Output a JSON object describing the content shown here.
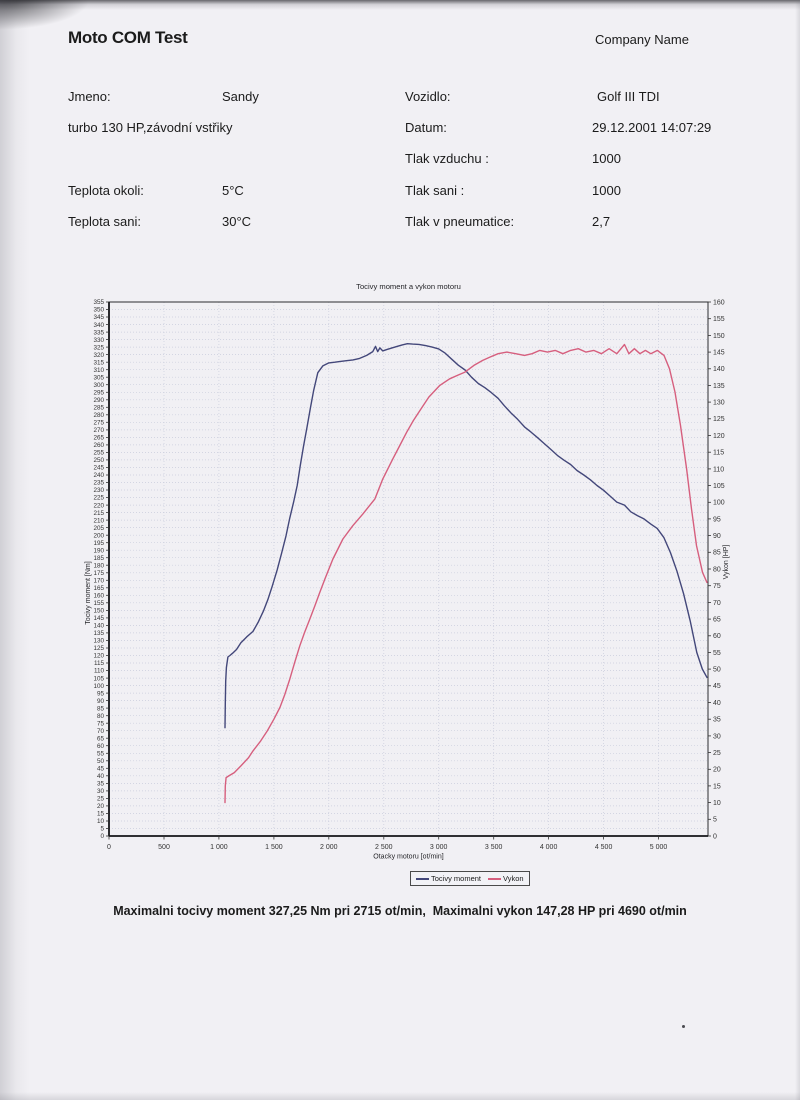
{
  "header": {
    "app_title": "Moto COM Test",
    "company": "Company Name"
  },
  "info": {
    "left": [
      {
        "label": "Jmeno:",
        "value": "Sandy"
      },
      {
        "label": "turbo 130 HP,závodní vstřiky"
      },
      {
        "label": "Teplota okoli:",
        "value": "5°C"
      },
      {
        "label": "Teplota sani:",
        "value": "30°C"
      }
    ],
    "right": [
      {
        "label": "Vozidlo:",
        "value": "Golf III TDI"
      },
      {
        "label": "Datum:",
        "value": "29.12.2001 14:07:29"
      },
      {
        "label": "Tlak vzduchu :",
        "value": "1000"
      },
      {
        "label": "Tlak sani :",
        "value": "1000"
      },
      {
        "label": "Tlak v pneumatice:",
        "value": "2,7"
      }
    ]
  },
  "summary": "Maximalni tocivy moment 327,25 Nm pri 2715 ot/min,  Maximalni vykon 147,28 HP pri 4690 ot/min",
  "chart_data": {
    "type": "line",
    "title": "Tocivy moment a vykon motoru",
    "xlabel": "Otacky motoru [ot/min]",
    "ylabel_left": "Tocivy moment [Nm]",
    "ylabel_right": "Vykon [HP]",
    "xlim": [
      0,
      5450
    ],
    "x_tick_step": 500,
    "x_tick_max": 5000,
    "ylim_left": [
      0,
      355
    ],
    "y_tick_step_left": 5,
    "ylim_right": [
      0,
      160
    ],
    "y_tick_step_right": 5,
    "grid": true,
    "legend_position": "bottom",
    "max_torque_nm": 327.25,
    "max_torque_rpm": 2715,
    "max_power_hp": 147.28,
    "max_power_rpm": 4690,
    "series": [
      {
        "name": "Tocivy moment",
        "axis": "left",
        "color": "#43477a",
        "points": [
          [
            1055,
            72
          ],
          [
            1058,
            88
          ],
          [
            1062,
            103
          ],
          [
            1068,
            112
          ],
          [
            1082,
            119
          ],
          [
            1100,
            120
          ],
          [
            1125,
            121.5
          ],
          [
            1160,
            124
          ],
          [
            1200,
            128.5
          ],
          [
            1255,
            132.5
          ],
          [
            1310,
            136
          ],
          [
            1360,
            142.5
          ],
          [
            1405,
            149.5
          ],
          [
            1445,
            157
          ],
          [
            1485,
            166
          ],
          [
            1530,
            177
          ],
          [
            1570,
            188
          ],
          [
            1610,
            199.5
          ],
          [
            1645,
            211.5
          ],
          [
            1680,
            222
          ],
          [
            1712,
            233
          ],
          [
            1740,
            246
          ],
          [
            1770,
            259
          ],
          [
            1800,
            271
          ],
          [
            1832,
            284.5
          ],
          [
            1862,
            296
          ],
          [
            1900,
            308
          ],
          [
            1945,
            312.5
          ],
          [
            2000,
            314.5
          ],
          [
            2055,
            315
          ],
          [
            2105,
            315.5
          ],
          [
            2160,
            316
          ],
          [
            2220,
            316.5
          ],
          [
            2280,
            317.5
          ],
          [
            2345,
            319.5
          ],
          [
            2400,
            322
          ],
          [
            2425,
            325.5
          ],
          [
            2445,
            322
          ],
          [
            2465,
            324.5
          ],
          [
            2490,
            322.5
          ],
          [
            2530,
            323.5
          ],
          [
            2575,
            324.5
          ],
          [
            2620,
            325.5
          ],
          [
            2668,
            326.5
          ],
          [
            2715,
            327.25
          ],
          [
            2762,
            327
          ],
          [
            2820,
            326.8
          ],
          [
            2880,
            326
          ],
          [
            2940,
            325
          ],
          [
            3000,
            323.8
          ],
          [
            3058,
            321
          ],
          [
            3118,
            317
          ],
          [
            3178,
            313
          ],
          [
            3240,
            309.8
          ],
          [
            3298,
            305
          ],
          [
            3360,
            300.8
          ],
          [
            3420,
            298
          ],
          [
            3478,
            294.8
          ],
          [
            3540,
            291
          ],
          [
            3598,
            286
          ],
          [
            3660,
            281
          ],
          [
            3718,
            277
          ],
          [
            3780,
            272
          ],
          [
            3840,
            268.5
          ],
          [
            3900,
            264.8
          ],
          [
            3958,
            261
          ],
          [
            4020,
            257
          ],
          [
            4080,
            253
          ],
          [
            4140,
            249.8
          ],
          [
            4200,
            247
          ],
          [
            4258,
            243
          ],
          [
            4320,
            240
          ],
          [
            4380,
            236.8
          ],
          [
            4440,
            233
          ],
          [
            4500,
            229.8
          ],
          [
            4558,
            226
          ],
          [
            4620,
            222
          ],
          [
            4690,
            220
          ],
          [
            4748,
            215.5
          ],
          [
            4808,
            213
          ],
          [
            4868,
            210.8
          ],
          [
            4928,
            207.5
          ],
          [
            4988,
            204.5
          ],
          [
            5048,
            198.5
          ],
          [
            5108,
            188.5
          ],
          [
            5168,
            176
          ],
          [
            5228,
            161
          ],
          [
            5288,
            143
          ],
          [
            5348,
            122
          ],
          [
            5398,
            111
          ],
          [
            5440,
            105.5
          ]
        ]
      },
      {
        "name": "Vykon",
        "axis": "right",
        "color": "#d65f7e",
        "points": [
          [
            1055,
            10
          ],
          [
            1058,
            15
          ],
          [
            1065,
            17.5
          ],
          [
            1090,
            18
          ],
          [
            1140,
            19
          ],
          [
            1200,
            21
          ],
          [
            1270,
            23.5
          ],
          [
            1310,
            25.5
          ],
          [
            1380,
            28.5
          ],
          [
            1440,
            31.5
          ],
          [
            1500,
            35
          ],
          [
            1555,
            38.5
          ],
          [
            1600,
            42.5
          ],
          [
            1645,
            47
          ],
          [
            1690,
            52
          ],
          [
            1736,
            57
          ],
          [
            1780,
            61
          ],
          [
            1827,
            65
          ],
          [
            1873,
            69
          ],
          [
            1918,
            73
          ],
          [
            1964,
            77
          ],
          [
            2037,
            83
          ],
          [
            2128,
            89
          ],
          [
            2219,
            93
          ],
          [
            2310,
            96.5
          ],
          [
            2419,
            101
          ],
          [
            2491,
            107
          ],
          [
            2582,
            113
          ],
          [
            2646,
            117
          ],
          [
            2709,
            121
          ],
          [
            2770,
            124.5
          ],
          [
            2840,
            128
          ],
          [
            2910,
            131.5
          ],
          [
            3010,
            135
          ],
          [
            3100,
            137
          ],
          [
            3170,
            138
          ],
          [
            3239,
            139
          ],
          [
            3320,
            141
          ],
          [
            3400,
            142.5
          ],
          [
            3466,
            143.5
          ],
          [
            3540,
            144.5
          ],
          [
            3620,
            145
          ],
          [
            3700,
            144.5
          ],
          [
            3780,
            144
          ],
          [
            3850,
            144.5
          ],
          [
            3920,
            145.5
          ],
          [
            3990,
            145
          ],
          [
            4060,
            145.5
          ],
          [
            4130,
            144.5
          ],
          [
            4200,
            145.5
          ],
          [
            4270,
            146
          ],
          [
            4340,
            145
          ],
          [
            4410,
            145.5
          ],
          [
            4480,
            144.5
          ],
          [
            4550,
            146
          ],
          [
            4620,
            144.5
          ],
          [
            4690,
            147.28
          ],
          [
            4730,
            144.5
          ],
          [
            4780,
            146
          ],
          [
            4830,
            144.5
          ],
          [
            4880,
            145.5
          ],
          [
            4930,
            144.5
          ],
          [
            4990,
            145.5
          ],
          [
            5050,
            144
          ],
          [
            5100,
            140
          ],
          [
            5150,
            133
          ],
          [
            5200,
            123
          ],
          [
            5255,
            110
          ],
          [
            5300,
            98
          ],
          [
            5345,
            87
          ],
          [
            5400,
            79
          ],
          [
            5440,
            76
          ]
        ]
      }
    ]
  }
}
